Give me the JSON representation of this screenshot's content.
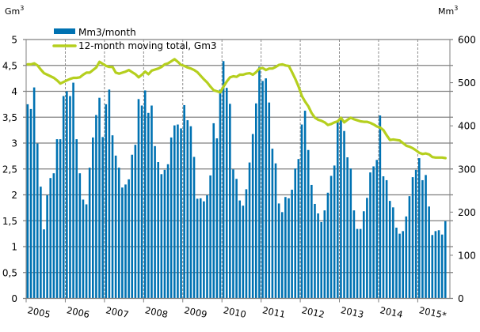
{
  "chart_data": {
    "type": "bar+line",
    "units_left": "Gm",
    "units_left_sup": "3",
    "units_right": "Mm",
    "units_right_sup": "3",
    "left_ticks": [
      "0",
      "0,5",
      "1",
      "1,5",
      "2",
      "2,5",
      "3",
      "3,5",
      "4",
      "4,5",
      "5"
    ],
    "right_ticks": [
      "0",
      "100",
      "200",
      "300",
      "400",
      "500",
      "600"
    ],
    "ylim_left": [
      0,
      5
    ],
    "ylim_right": [
      0,
      600
    ],
    "x_labels": [
      "2005",
      "2006",
      "2007",
      "2008",
      "2009",
      "2010",
      "2011",
      "2012",
      "2013",
      "2014",
      "2015*"
    ],
    "grid": true,
    "legend_placement": "top-left",
    "series": [
      {
        "name": "Mm3/month",
        "type": "bar",
        "axis": "right",
        "color": "#0072B2",
        "start": "2005-01",
        "frequency": "monthly",
        "values": [
          450,
          439,
          489,
          359,
          259,
          160,
          239,
          279,
          290,
          369,
          369,
          469,
          480,
          469,
          500,
          369,
          290,
          229,
          218,
          303,
          373,
          425,
          465,
          374,
          450,
          484,
          378,
          331,
          303,
          257,
          264,
          276,
          333,
          356,
          462,
          447,
          482,
          430,
          447,
          353,
          316,
          288,
          298,
          311,
          373,
          401,
          403,
          394,
          448,
          413,
          399,
          328,
          231,
          232,
          225,
          239,
          285,
          406,
          371,
          484,
          550,
          488,
          451,
          299,
          277,
          227,
          215,
          253,
          315,
          381,
          452,
          537,
          504,
          510,
          454,
          347,
          313,
          220,
          200,
          235,
          232,
          252,
          301,
          323,
          403,
          435,
          344,
          263,
          219,
          197,
          177,
          204,
          245,
          284,
          308,
          410,
          415,
          388,
          327,
          301,
          204,
          161,
          161,
          202,
          233,
          292,
          306,
          321,
          424,
          283,
          274,
          226,
          211,
          164,
          150,
          156,
          190,
          237,
          281,
          298,
          325,
          274,
          286,
          213,
          147,
          156,
          158,
          148,
          179
        ]
      },
      {
        "name": "12-month moving total, Gm3",
        "type": "line",
        "axis": "left",
        "color": "#B5CF1E",
        "start": "2005-01",
        "frequency": "monthly",
        "values": [
          4.52,
          4.52,
          4.54,
          4.5,
          4.42,
          4.35,
          4.32,
          4.29,
          4.26,
          4.21,
          4.15,
          4.18,
          4.21,
          4.24,
          4.26,
          4.26,
          4.27,
          4.32,
          4.36,
          4.36,
          4.41,
          4.46,
          4.57,
          4.53,
          4.49,
          4.47,
          4.47,
          4.36,
          4.34,
          4.36,
          4.38,
          4.41,
          4.37,
          4.33,
          4.27,
          4.32,
          4.38,
          4.33,
          4.4,
          4.42,
          4.44,
          4.47,
          4.52,
          4.54,
          4.58,
          4.62,
          4.57,
          4.51,
          4.49,
          4.46,
          4.44,
          4.41,
          4.37,
          4.3,
          4.23,
          4.17,
          4.09,
          4.02,
          4.0,
          3.98,
          4.09,
          4.19,
          4.27,
          4.29,
          4.28,
          4.32,
          4.32,
          4.34,
          4.35,
          4.32,
          4.37,
          4.44,
          4.45,
          4.41,
          4.44,
          4.44,
          4.47,
          4.51,
          4.52,
          4.5,
          4.49,
          4.37,
          4.24,
          4.09,
          3.91,
          3.8,
          3.71,
          3.58,
          3.49,
          3.45,
          3.43,
          3.4,
          3.35,
          3.37,
          3.4,
          3.42,
          3.49,
          3.4,
          3.45,
          3.49,
          3.46,
          3.44,
          3.42,
          3.41,
          3.41,
          3.39,
          3.36,
          3.32,
          3.3,
          3.25,
          3.15,
          3.06,
          3.07,
          3.06,
          3.05,
          3.0,
          2.95,
          2.93,
          2.9,
          2.86,
          2.81,
          2.79,
          2.8,
          2.78,
          2.73,
          2.72,
          2.72,
          2.72,
          2.71
        ]
      }
    ]
  }
}
